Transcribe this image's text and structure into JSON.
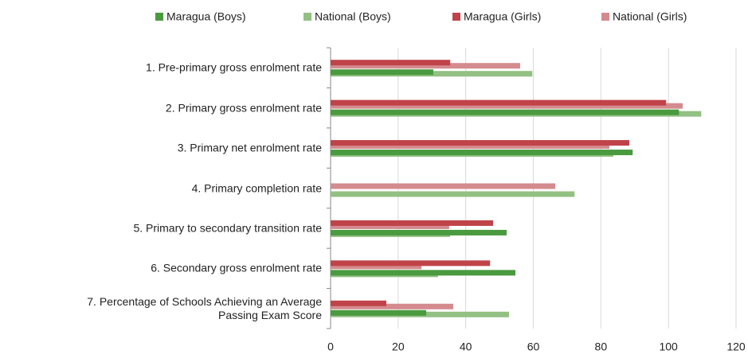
{
  "chart_data": {
    "type": "barh",
    "categories": [
      "1. Pre-primary gross enrolment rate",
      "2. Primary gross enrolment rate",
      "3. Primary net enrolment rate",
      "4. Primary completion rate",
      "5. Primary to secondary transition rate",
      "6. Secondary gross enrolment rate",
      "7. Percentage of Schools Achieving an Average\nPassing Exam Score"
    ],
    "series": [
      {
        "name": "Maragua (Boys)",
        "color": "#4a9a3f",
        "values": [
          30.4,
          103.1,
          89.4,
          null,
          52.1,
          54.7,
          28.3
        ]
      },
      {
        "name": "National (Boys)",
        "color": "#93c083",
        "values": [
          59.7,
          109.7,
          83.7,
          72.2,
          35.4,
          31.8,
          52.8
        ]
      },
      {
        "name": "Maragua (Girls)",
        "color": "#c0434a",
        "values": [
          35.4,
          99.3,
          88.4,
          null,
          48.1,
          47.2,
          16.5
        ]
      },
      {
        "name": "National (Girls)",
        "color": "#d48b8e",
        "values": [
          56.1,
          104.2,
          82.5,
          66.5,
          35.1,
          26.9,
          36.3
        ]
      }
    ],
    "xlim": [
      0,
      120
    ],
    "xticks": [
      0,
      20,
      40,
      60,
      80,
      100,
      120
    ],
    "grid": true,
    "legend": "top"
  }
}
